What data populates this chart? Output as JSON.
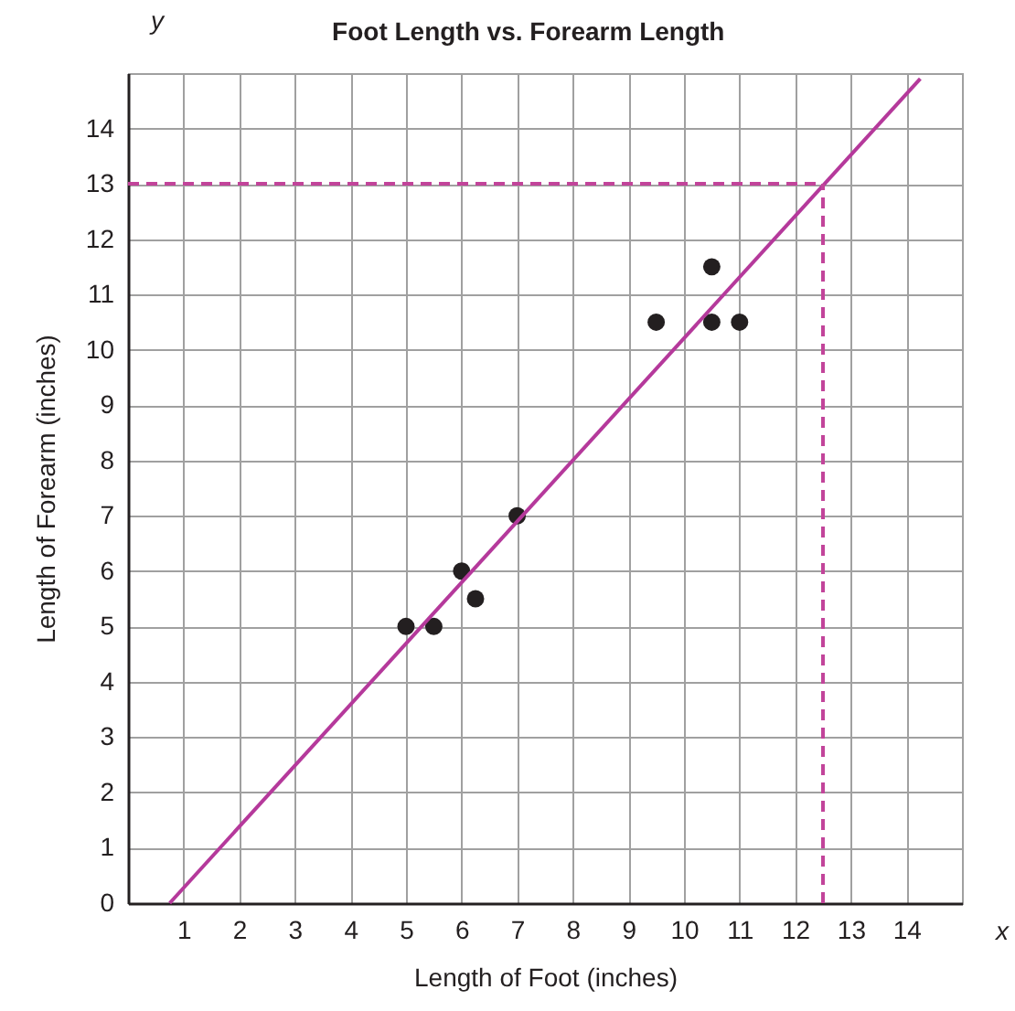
{
  "chart_data": {
    "type": "scatter",
    "title": "Foot Length vs. Forearm Length",
    "xlabel": "Length of Foot (inches)",
    "ylabel": "Length of Forearm (inches)",
    "annotations": [
      "x",
      "y"
    ],
    "xlim": [
      0,
      15
    ],
    "ylim": [
      0,
      15
    ],
    "xticks": [
      1,
      2,
      3,
      4,
      5,
      6,
      7,
      8,
      9,
      10,
      11,
      12,
      13,
      14
    ],
    "yticks": [
      0,
      1,
      2,
      3,
      4,
      5,
      6,
      7,
      8,
      9,
      10,
      11,
      12,
      13,
      14
    ],
    "grid": true,
    "marker": "circle",
    "series": [
      {
        "type": "scatter",
        "color": "#231f20",
        "x": [
          5,
          5.5,
          6,
          6.25,
          7,
          9.5,
          10.5,
          10.5,
          11
        ],
        "values": [
          5,
          5,
          6,
          5.5,
          7,
          10.5,
          11.5,
          10.5,
          10.5
        ]
      },
      {
        "type": "line",
        "marker": "none",
        "color": "#b5399b",
        "x": [
          0.75,
          14.25
        ],
        "values": [
          0,
          14.9
        ]
      }
    ],
    "ref_lines": [
      {
        "axis": "y",
        "value": 13,
        "color": "#c2449a",
        "line_style": "dashed"
      },
      {
        "axis": "x",
        "value": 12.5,
        "color": "#c2449a",
        "line_style": "dashed"
      }
    ]
  }
}
